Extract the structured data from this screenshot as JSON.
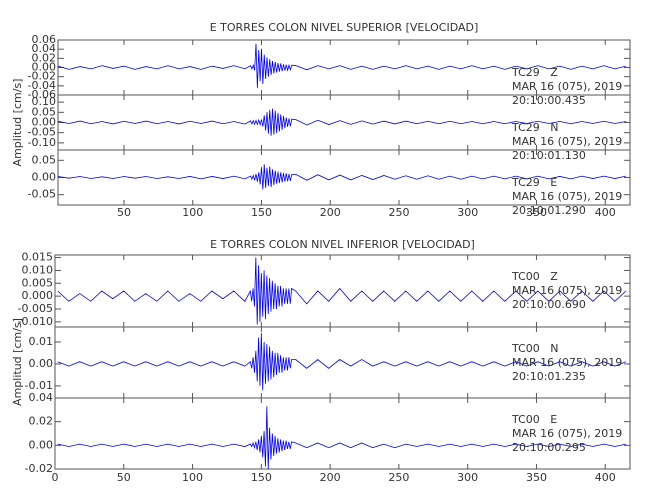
{
  "chart_data": [
    {
      "type": "line",
      "title": "E TORRES COLON NIVEL SUPERIOR [VELOCIDAD]",
      "ylabel": "Amplitud [cm/s]",
      "color": "#0000ee",
      "xlim": [
        2,
        418
      ],
      "xticks": [
        50,
        100,
        150,
        200,
        250,
        300,
        350,
        400
      ],
      "x": [
        2,
        10,
        18,
        26,
        34,
        42,
        50,
        58,
        66,
        74,
        82,
        90,
        98,
        106,
        114,
        122,
        130,
        138,
        142,
        143,
        144,
        145,
        146,
        147,
        148,
        149,
        150,
        151,
        152,
        153,
        154,
        155,
        156,
        157,
        158,
        159,
        160,
        161,
        162,
        163,
        164,
        165,
        166,
        167,
        168,
        169,
        170,
        171,
        172,
        175,
        183,
        191,
        199,
        207,
        215,
        223,
        231,
        239,
        247,
        255,
        263,
        271,
        279,
        287,
        295,
        303,
        311,
        319,
        327,
        335,
        343,
        351,
        359,
        367,
        375,
        383,
        391,
        399,
        407,
        415
      ],
      "panels": [
        {
          "label": "TC29   Z",
          "date": "MAR 16 (075), 2019",
          "time": "20:10:00.435",
          "ylim": [
            -0.06,
            0.06
          ],
          "yticks": [
            0.06,
            0.04,
            0.02,
            {
              "value": 0,
              "label": "0.00"
            },
            -0.02,
            -0.04,
            -0.06
          ],
          "values": [
            0.003,
            -0.004,
            0.002,
            -0.003,
            0.004,
            -0.002,
            0.003,
            -0.004,
            0.002,
            -0.003,
            0.004,
            -0.003,
            0.002,
            -0.004,
            0.003,
            -0.002,
            0.004,
            -0.003,
            0.004,
            -0.003,
            0.005,
            -0.006,
            0.052,
            -0.045,
            0.038,
            -0.03,
            0.041,
            -0.036,
            0.028,
            -0.025,
            0.022,
            -0.02,
            0.018,
            -0.016,
            0.014,
            -0.013,
            0.012,
            -0.011,
            0.01,
            -0.009,
            0.009,
            -0.008,
            0.007,
            -0.007,
            0.006,
            -0.006,
            0.005,
            -0.005,
            0.005,
            0.004,
            -0.005,
            0.004,
            -0.003,
            0.004,
            -0.004,
            0.003,
            -0.004,
            0.003,
            -0.003,
            0.004,
            -0.003,
            0.003,
            -0.004,
            0.003,
            -0.003,
            0.004,
            -0.003,
            0.003,
            -0.004,
            0.003,
            -0.003,
            0.004,
            -0.003,
            0.003,
            -0.004,
            0.003,
            -0.003,
            0.004,
            -0.003,
            0.003
          ]
        },
        {
          "label": "TC29   N",
          "date": "MAR 16 (075), 2019",
          "time": "20:10:01.130",
          "ylim": [
            -0.135,
            0.135
          ],
          "yticks": [
            {
              "value": 0.1,
              "label": "0.10"
            },
            0.05,
            {
              "value": 0,
              "label": "0.00"
            },
            -0.05,
            {
              "value": -0.1,
              "label": "-0.10"
            }
          ],
          "values": [
            0.006,
            -0.005,
            0.007,
            -0.006,
            0.005,
            -0.007,
            0.006,
            -0.005,
            0.007,
            -0.006,
            0.005,
            -0.007,
            0.006,
            -0.005,
            0.007,
            -0.006,
            0.005,
            -0.008,
            0.008,
            -0.007,
            0.009,
            -0.008,
            0.01,
            -0.009,
            0.012,
            -0.011,
            0.015,
            -0.02,
            0.035,
            -0.04,
            0.05,
            -0.055,
            0.062,
            -0.065,
            0.068,
            -0.06,
            0.058,
            -0.052,
            0.048,
            -0.044,
            0.04,
            -0.036,
            0.032,
            -0.028,
            0.025,
            -0.022,
            0.02,
            -0.018,
            0.016,
            0.014,
            -0.012,
            0.011,
            -0.01,
            0.009,
            -0.009,
            0.008,
            -0.008,
            0.007,
            -0.007,
            0.007,
            -0.006,
            0.006,
            -0.006,
            0.006,
            -0.006,
            0.005,
            -0.006,
            0.005,
            -0.006,
            0.005,
            -0.005,
            0.006,
            -0.005,
            0.005,
            -0.006,
            0.005,
            -0.005,
            0.006,
            -0.005,
            0.005
          ]
        },
        {
          "label": "TC29   E",
          "date": "MAR 16 (075), 2019",
          "time": "20:10:01.290",
          "ylim": [
            -0.08,
            0.08
          ],
          "yticks": [
            0.05,
            {
              "value": 0,
              "label": "0.00"
            },
            -0.05
          ],
          "values": [
            0.003,
            -0.002,
            0.003,
            -0.003,
            0.002,
            -0.003,
            0.003,
            -0.002,
            0.003,
            -0.003,
            0.002,
            -0.003,
            0.003,
            -0.004,
            0.003,
            -0.003,
            0.004,
            -0.004,
            0.004,
            -0.005,
            0.006,
            -0.008,
            0.01,
            -0.012,
            0.015,
            -0.02,
            0.03,
            -0.035,
            0.038,
            -0.03,
            0.028,
            -0.025,
            0.032,
            -0.028,
            0.024,
            -0.022,
            0.02,
            -0.018,
            0.017,
            -0.016,
            0.015,
            -0.014,
            0.013,
            -0.012,
            0.012,
            -0.011,
            0.01,
            -0.01,
            0.009,
            0.009,
            -0.008,
            0.008,
            -0.007,
            0.007,
            -0.007,
            0.006,
            -0.006,
            0.006,
            -0.005,
            0.005,
            -0.005,
            0.005,
            -0.005,
            0.004,
            -0.005,
            0.004,
            -0.004,
            0.004,
            -0.004,
            0.004,
            -0.004,
            0.004,
            -0.004,
            0.003,
            -0.004,
            0.004,
            -0.003,
            0.004,
            -0.003,
            0.004
          ]
        }
      ]
    },
    {
      "type": "line",
      "title": "E TORRES COLON NIVEL INFERIOR [VELOCIDAD]",
      "ylabel": "Amplitud [cm/s]",
      "color": "#0000ee",
      "xlim": [
        0,
        418
      ],
      "xticks": [
        0,
        50,
        100,
        150,
        200,
        250,
        300,
        350,
        400
      ],
      "x": [
        2,
        10,
        18,
        26,
        34,
        42,
        50,
        58,
        66,
        74,
        82,
        90,
        98,
        106,
        114,
        122,
        130,
        138,
        142,
        143,
        144,
        145,
        146,
        147,
        148,
        149,
        150,
        151,
        152,
        153,
        154,
        155,
        156,
        157,
        158,
        159,
        160,
        161,
        162,
        163,
        164,
        165,
        166,
        167,
        168,
        169,
        170,
        171,
        172,
        175,
        183,
        191,
        199,
        207,
        215,
        223,
        231,
        239,
        247,
        255,
        263,
        271,
        279,
        287,
        295,
        303,
        311,
        319,
        327,
        335,
        343,
        351,
        359,
        367,
        375,
        383,
        391,
        399,
        407,
        415
      ],
      "panels": [
        {
          "label": "TC00   Z",
          "date": "MAR 16 (075), 2019",
          "time": "20:10:00.690",
          "ylim": [
            -0.012,
            0.016
          ],
          "yticks": [
            0.015,
            {
              "value": 0.01,
              "label": "0.010"
            },
            0.005,
            {
              "value": 0,
              "label": "0.000"
            },
            -0.005,
            {
              "value": -0.01,
              "label": "-0.010"
            }
          ],
          "values": [
            0.002,
            -0.002,
            0.001,
            -0.002,
            0.002,
            -0.001,
            0.002,
            -0.002,
            0.001,
            -0.002,
            0.002,
            -0.002,
            0.001,
            -0.002,
            0.002,
            -0.001,
            0.002,
            -0.002,
            0.002,
            -0.002,
            0.003,
            -0.004,
            0.015,
            -0.011,
            0.012,
            -0.01,
            0.009,
            -0.008,
            0.01,
            -0.009,
            0.008,
            -0.007,
            0.007,
            -0.006,
            0.006,
            -0.005,
            0.005,
            -0.005,
            0.004,
            -0.004,
            0.004,
            -0.004,
            0.003,
            -0.003,
            0.003,
            -0.003,
            0.003,
            -0.003,
            0.003,
            0.002,
            -0.003,
            0.002,
            -0.002,
            0.003,
            -0.002,
            0.002,
            -0.002,
            0.002,
            -0.002,
            0.002,
            -0.002,
            0.002,
            -0.002,
            0.002,
            -0.002,
            0.002,
            -0.002,
            0.002,
            -0.002,
            0.002,
            -0.002,
            0.002,
            -0.002,
            0.002,
            -0.002,
            0.002,
            -0.002,
            0.002,
            -0.002,
            0.002
          ]
        },
        {
          "label": "TC00   N",
          "date": "MAR 16 (075), 2019",
          "time": "20:10:01.235",
          "ylim": [
            -0.0155,
            0.0168
          ],
          "yticks": [
            0.01,
            {
              "value": 0,
              "label": "0.00"
            },
            -0.01
          ],
          "values": [
            0.001,
            -0.001,
            0.001,
            -0.001,
            0.001,
            -0.001,
            0.001,
            -0.001,
            0.001,
            -0.001,
            0.001,
            -0.001,
            0.001,
            -0.001,
            0.001,
            -0.001,
            0.001,
            -0.001,
            0.001,
            -0.002,
            0.003,
            -0.004,
            0.006,
            -0.008,
            0.012,
            -0.01,
            0.014,
            -0.012,
            0.01,
            -0.009,
            0.009,
            -0.008,
            0.008,
            -0.007,
            0.006,
            -0.006,
            0.005,
            -0.005,
            0.005,
            -0.004,
            0.004,
            -0.004,
            0.003,
            -0.003,
            0.003,
            -0.003,
            0.003,
            -0.002,
            0.002,
            0.002,
            -0.002,
            0.002,
            -0.002,
            0.002,
            -0.001,
            0.002,
            -0.001,
            0.001,
            -0.001,
            0.001,
            -0.001,
            0.001,
            -0.001,
            0.001,
            -0.001,
            0.001,
            -0.001,
            0.001,
            -0.001,
            0.001,
            -0.001,
            0.001,
            -0.001,
            0.001,
            -0.001,
            0.001,
            -0.001,
            0.001,
            -0.001,
            0.001
          ]
        },
        {
          "label": "TC00   E",
          "date": "MAR 16 (075), 2019",
          "time": "20:10:00.295",
          "ylim": [
            -0.02,
            0.04
          ],
          "yticks": [
            0.04,
            0.02,
            {
              "value": 0,
              "label": "0.00"
            },
            -0.02
          ],
          "values": [
            0.001,
            -0.001,
            0.001,
            -0.001,
            0.001,
            -0.001,
            0.001,
            -0.001,
            0.001,
            -0.001,
            0.001,
            -0.001,
            0.001,
            -0.001,
            0.001,
            -0.001,
            0.001,
            -0.001,
            0.001,
            -0.001,
            0.002,
            -0.002,
            0.003,
            -0.004,
            0.005,
            -0.006,
            0.008,
            -0.01,
            0.012,
            -0.018,
            0.033,
            -0.02,
            0.015,
            -0.012,
            0.01,
            -0.009,
            0.008,
            -0.007,
            0.006,
            -0.006,
            0.005,
            -0.005,
            0.004,
            -0.004,
            0.004,
            -0.003,
            0.003,
            -0.003,
            0.003,
            0.002,
            -0.002,
            0.002,
            -0.002,
            0.002,
            -0.002,
            0.002,
            -0.002,
            0.001,
            -0.002,
            0.001,
            -0.001,
            0.001,
            -0.001,
            0.001,
            -0.001,
            0.001,
            -0.001,
            0.001,
            -0.001,
            0.001,
            -0.001,
            0.001,
            -0.001,
            0.001,
            -0.001,
            0.001,
            -0.001,
            0.001,
            -0.001,
            0.001
          ]
        }
      ]
    }
  ]
}
